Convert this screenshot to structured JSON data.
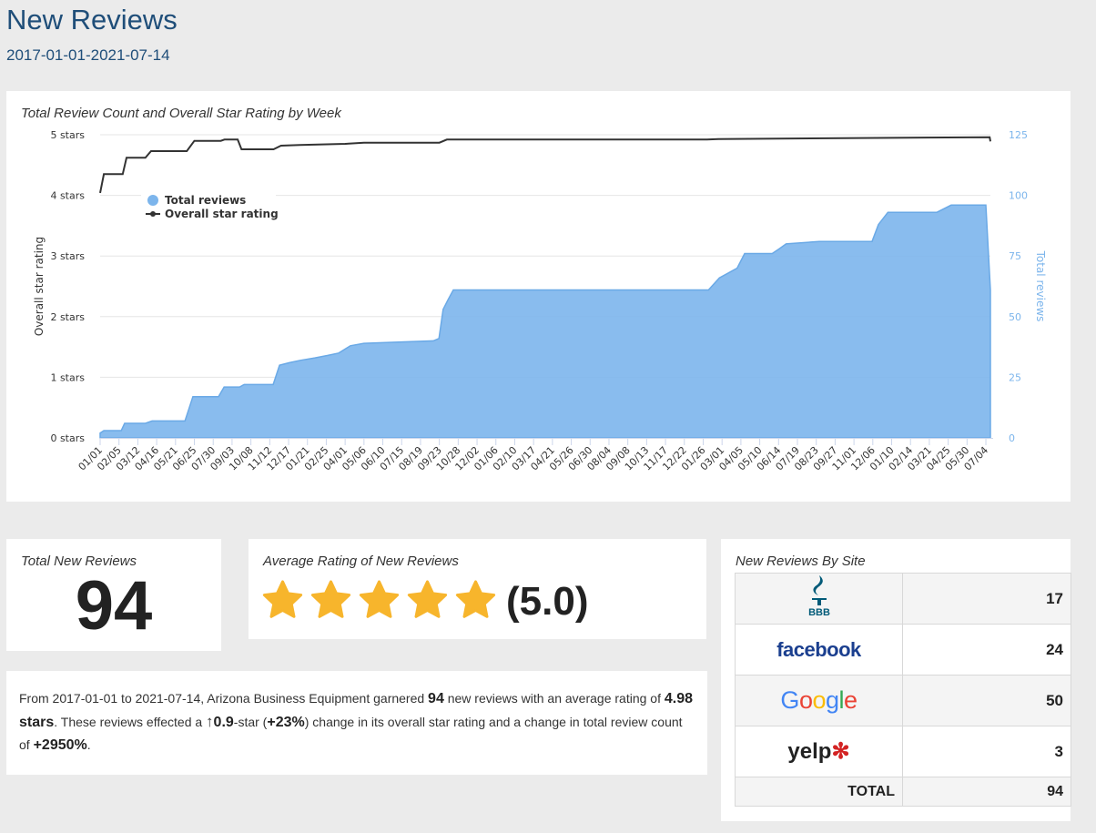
{
  "header": {
    "title": "New Reviews",
    "date_range": "2017-01-01-2021-07-14"
  },
  "chart_data": {
    "type": "line",
    "title": "Total Review Count and Overall Star Rating by Week",
    "ylabel": "Overall star rating",
    "y2label": "Total reviews",
    "ylim": [
      0,
      5
    ],
    "y2lim": [
      0,
      125
    ],
    "y_ticks": [
      "0 stars",
      "1 stars",
      "2 stars",
      "3 stars",
      "4 stars",
      "5 stars"
    ],
    "y2_ticks": [
      "0",
      "25",
      "50",
      "75",
      "100",
      "125"
    ],
    "x_weeks_total": 236.2,
    "x_tick_step_weeks": 5,
    "x_ticks": [
      "01/01",
      "02/05",
      "03/12",
      "04/16",
      "05/21",
      "06/25",
      "07/30",
      "09/03",
      "10/08",
      "11/12",
      "12/17",
      "01/21",
      "02/25",
      "04/01",
      "05/06",
      "06/10",
      "07/15",
      "08/19",
      "09/23",
      "10/28",
      "12/02",
      "01/06",
      "02/10",
      "03/17",
      "04/21",
      "05/26",
      "06/30",
      "08/04",
      "09/08",
      "10/13",
      "11/17",
      "12/22",
      "01/26",
      "03/01",
      "04/05",
      "05/10",
      "06/14",
      "07/19",
      "08/23",
      "09/27",
      "11/01",
      "12/06",
      "01/10",
      "02/14",
      "03/21",
      "04/25",
      "05/30",
      "07/04"
    ],
    "legend": [
      "Total reviews",
      "Overall star rating"
    ],
    "legend_position": "top-left",
    "series": [
      {
        "name": "Total reviews",
        "type": "area",
        "axis": "right",
        "color": "#7cb5ec",
        "points": [
          [
            0,
            2
          ],
          [
            1,
            3
          ],
          [
            5.6,
            3
          ],
          [
            6.5,
            6
          ],
          [
            12,
            6
          ],
          [
            13.8,
            7
          ],
          [
            22.5,
            7
          ],
          [
            24.6,
            17
          ],
          [
            31.4,
            17
          ],
          [
            32.9,
            21
          ],
          [
            37,
            21
          ],
          [
            38.2,
            22
          ],
          [
            45.9,
            22
          ],
          [
            47.6,
            30
          ],
          [
            50.2,
            31
          ],
          [
            53.1,
            32
          ],
          [
            57,
            33
          ],
          [
            60.4,
            34
          ],
          [
            63.3,
            35
          ],
          [
            66.4,
            38
          ],
          [
            70,
            39
          ],
          [
            88.4,
            40
          ],
          [
            89.9,
            41
          ],
          [
            91,
            53
          ],
          [
            92.3,
            57
          ],
          [
            93.7,
            61
          ],
          [
            161.4,
            61
          ],
          [
            164.3,
            66
          ],
          [
            166.7,
            68
          ],
          [
            169,
            70
          ],
          [
            171,
            76
          ],
          [
            178.3,
            76
          ],
          [
            180.2,
            78
          ],
          [
            182,
            80
          ],
          [
            190.8,
            81
          ],
          [
            204.8,
            81
          ],
          [
            206.5,
            88
          ],
          [
            209,
            93
          ],
          [
            222,
            93
          ],
          [
            225.8,
            96
          ],
          [
            235,
            96
          ],
          [
            236.2,
            61
          ]
        ]
      },
      {
        "name": "Overall star rating",
        "type": "line",
        "axis": "left",
        "color": "#333333",
        "points": [
          [
            0,
            4.04
          ],
          [
            1,
            4.35
          ],
          [
            6,
            4.35
          ],
          [
            7,
            4.62
          ],
          [
            12,
            4.62
          ],
          [
            13.5,
            4.73
          ],
          [
            23,
            4.73
          ],
          [
            25,
            4.9
          ],
          [
            32,
            4.9
          ],
          [
            33,
            4.92
          ],
          [
            36.5,
            4.92
          ],
          [
            37.5,
            4.76
          ],
          [
            46,
            4.76
          ],
          [
            48,
            4.82
          ],
          [
            53,
            4.83
          ],
          [
            65,
            4.85
          ],
          [
            70,
            4.87
          ],
          [
            90,
            4.87
          ],
          [
            92,
            4.92
          ],
          [
            161,
            4.92
          ],
          [
            164,
            4.93
          ],
          [
            236,
            4.96
          ],
          [
            236.2,
            4.89
          ]
        ]
      }
    ]
  },
  "total_card": {
    "title": "Total New Reviews",
    "value": "94"
  },
  "rating_card": {
    "title": "Average Rating of New Reviews",
    "value": "(5.0)",
    "stars": 5,
    "star_color": "#f7b52c"
  },
  "summary": {
    "t1": "From 2017-01-01 to 2021-07-14, Arizona Business Equipment garnered ",
    "count": "94",
    "t2": " new reviews with an average rating of ",
    "avg": "4.98 stars",
    "t3": ". These reviews effected a ",
    "arrow": "↑",
    "delta": "0.9",
    "t4": "-star (",
    "pct": "+23%",
    "t5": ") change in its overall star rating and a change in total review count of ",
    "count_pct": "+2950%",
    "t6": "."
  },
  "sites": {
    "title": "New Reviews By Site",
    "rows": [
      {
        "site": "BBB",
        "count": "17"
      },
      {
        "site": "facebook",
        "count": "24"
      },
      {
        "site": "Google",
        "count": "50"
      },
      {
        "site": "yelp",
        "count": "3"
      }
    ],
    "total_label": "TOTAL",
    "total": "94"
  }
}
